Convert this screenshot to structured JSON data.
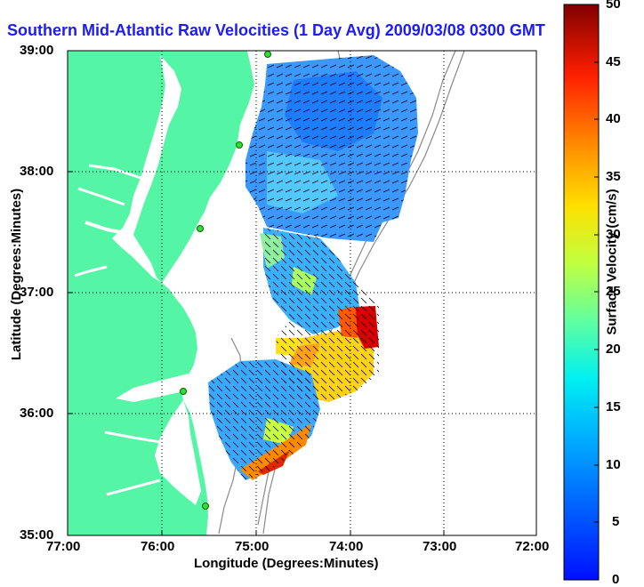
{
  "title": "Southern Mid-Atlantic Raw Velocities (1 Day Avg) 2009/03/08 0300 GMT",
  "axes": {
    "xlabel": "Longitude (Degrees:Minutes)",
    "ylabel": "Latitude (Degrees:Minutes)",
    "x_ticks": [
      "77:00",
      "76:00",
      "75:00",
      "74:00",
      "73:00",
      "72:00"
    ],
    "y_ticks": [
      "39:00",
      "38:00",
      "37:00",
      "36:00",
      "35:00"
    ]
  },
  "colorbar": {
    "label": "Surface Velocity (cm/s)",
    "ticks": [
      "50",
      "45",
      "40",
      "35",
      "30",
      "25",
      "20",
      "15",
      "10",
      "5",
      "0"
    ],
    "range": [
      0,
      50
    ]
  },
  "colors": {
    "land": "#55f5a6",
    "water": "#ffffff",
    "grid": "#000000",
    "title": "#1c1cf5"
  }
}
